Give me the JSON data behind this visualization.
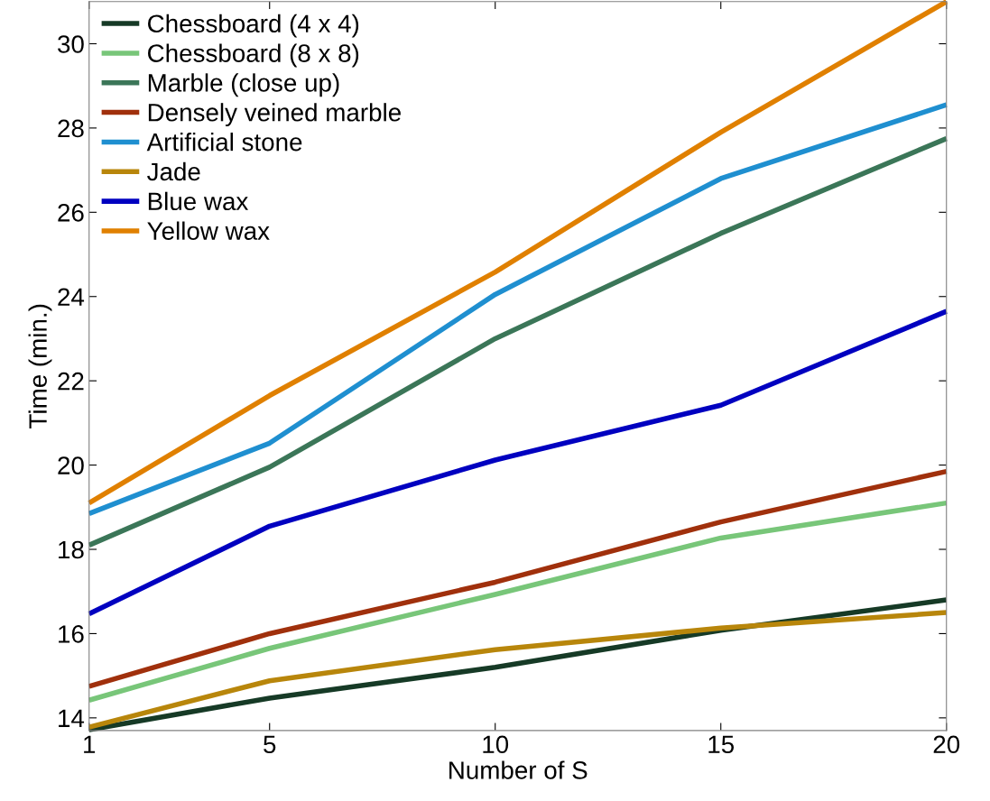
{
  "chart_data": {
    "type": "line",
    "xlabel": "Number of S",
    "ylabel": "Time (min.)",
    "x": [
      1,
      5,
      10,
      15,
      20
    ],
    "series": [
      {
        "name": "Chessboard (4 x 4)",
        "color": "#163a26",
        "values": [
          13.72,
          14.47,
          15.2,
          16.08,
          16.8
        ]
      },
      {
        "name": "Chessboard (8 x 8)",
        "color": "#78c679",
        "values": [
          14.42,
          15.65,
          16.93,
          18.27,
          19.1
        ]
      },
      {
        "name": "Marble (close up)",
        "color": "#3b7658",
        "values": [
          18.1,
          19.95,
          23.0,
          25.5,
          27.75
        ]
      },
      {
        "name": "Densely veined marble",
        "color": "#a0300c",
        "values": [
          14.75,
          16.0,
          17.22,
          18.65,
          19.85
        ]
      },
      {
        "name": "Artificial stone",
        "color": "#1f8fd0",
        "values": [
          18.85,
          20.52,
          24.05,
          26.8,
          28.55
        ]
      },
      {
        "name": "Jade",
        "color": "#b8860b",
        "values": [
          13.78,
          14.88,
          15.62,
          16.13,
          16.5
        ]
      },
      {
        "name": "Blue wax",
        "color": "#0000c0",
        "values": [
          16.47,
          18.55,
          20.12,
          21.42,
          23.65
        ]
      },
      {
        "name": "Yellow wax",
        "color": "#e08000",
        "values": [
          19.1,
          21.65,
          24.58,
          27.9,
          31.0
        ]
      }
    ],
    "xlim": [
      1,
      20
    ],
    "xticks": [
      1,
      5,
      10,
      15,
      20
    ],
    "ylim": [
      13.7,
      31
    ],
    "yticks": [
      14,
      16,
      18,
      20,
      22,
      24,
      26,
      28,
      30
    ],
    "grid": false,
    "legend": "top left",
    "marker": "none",
    "line_style": "solid"
  }
}
